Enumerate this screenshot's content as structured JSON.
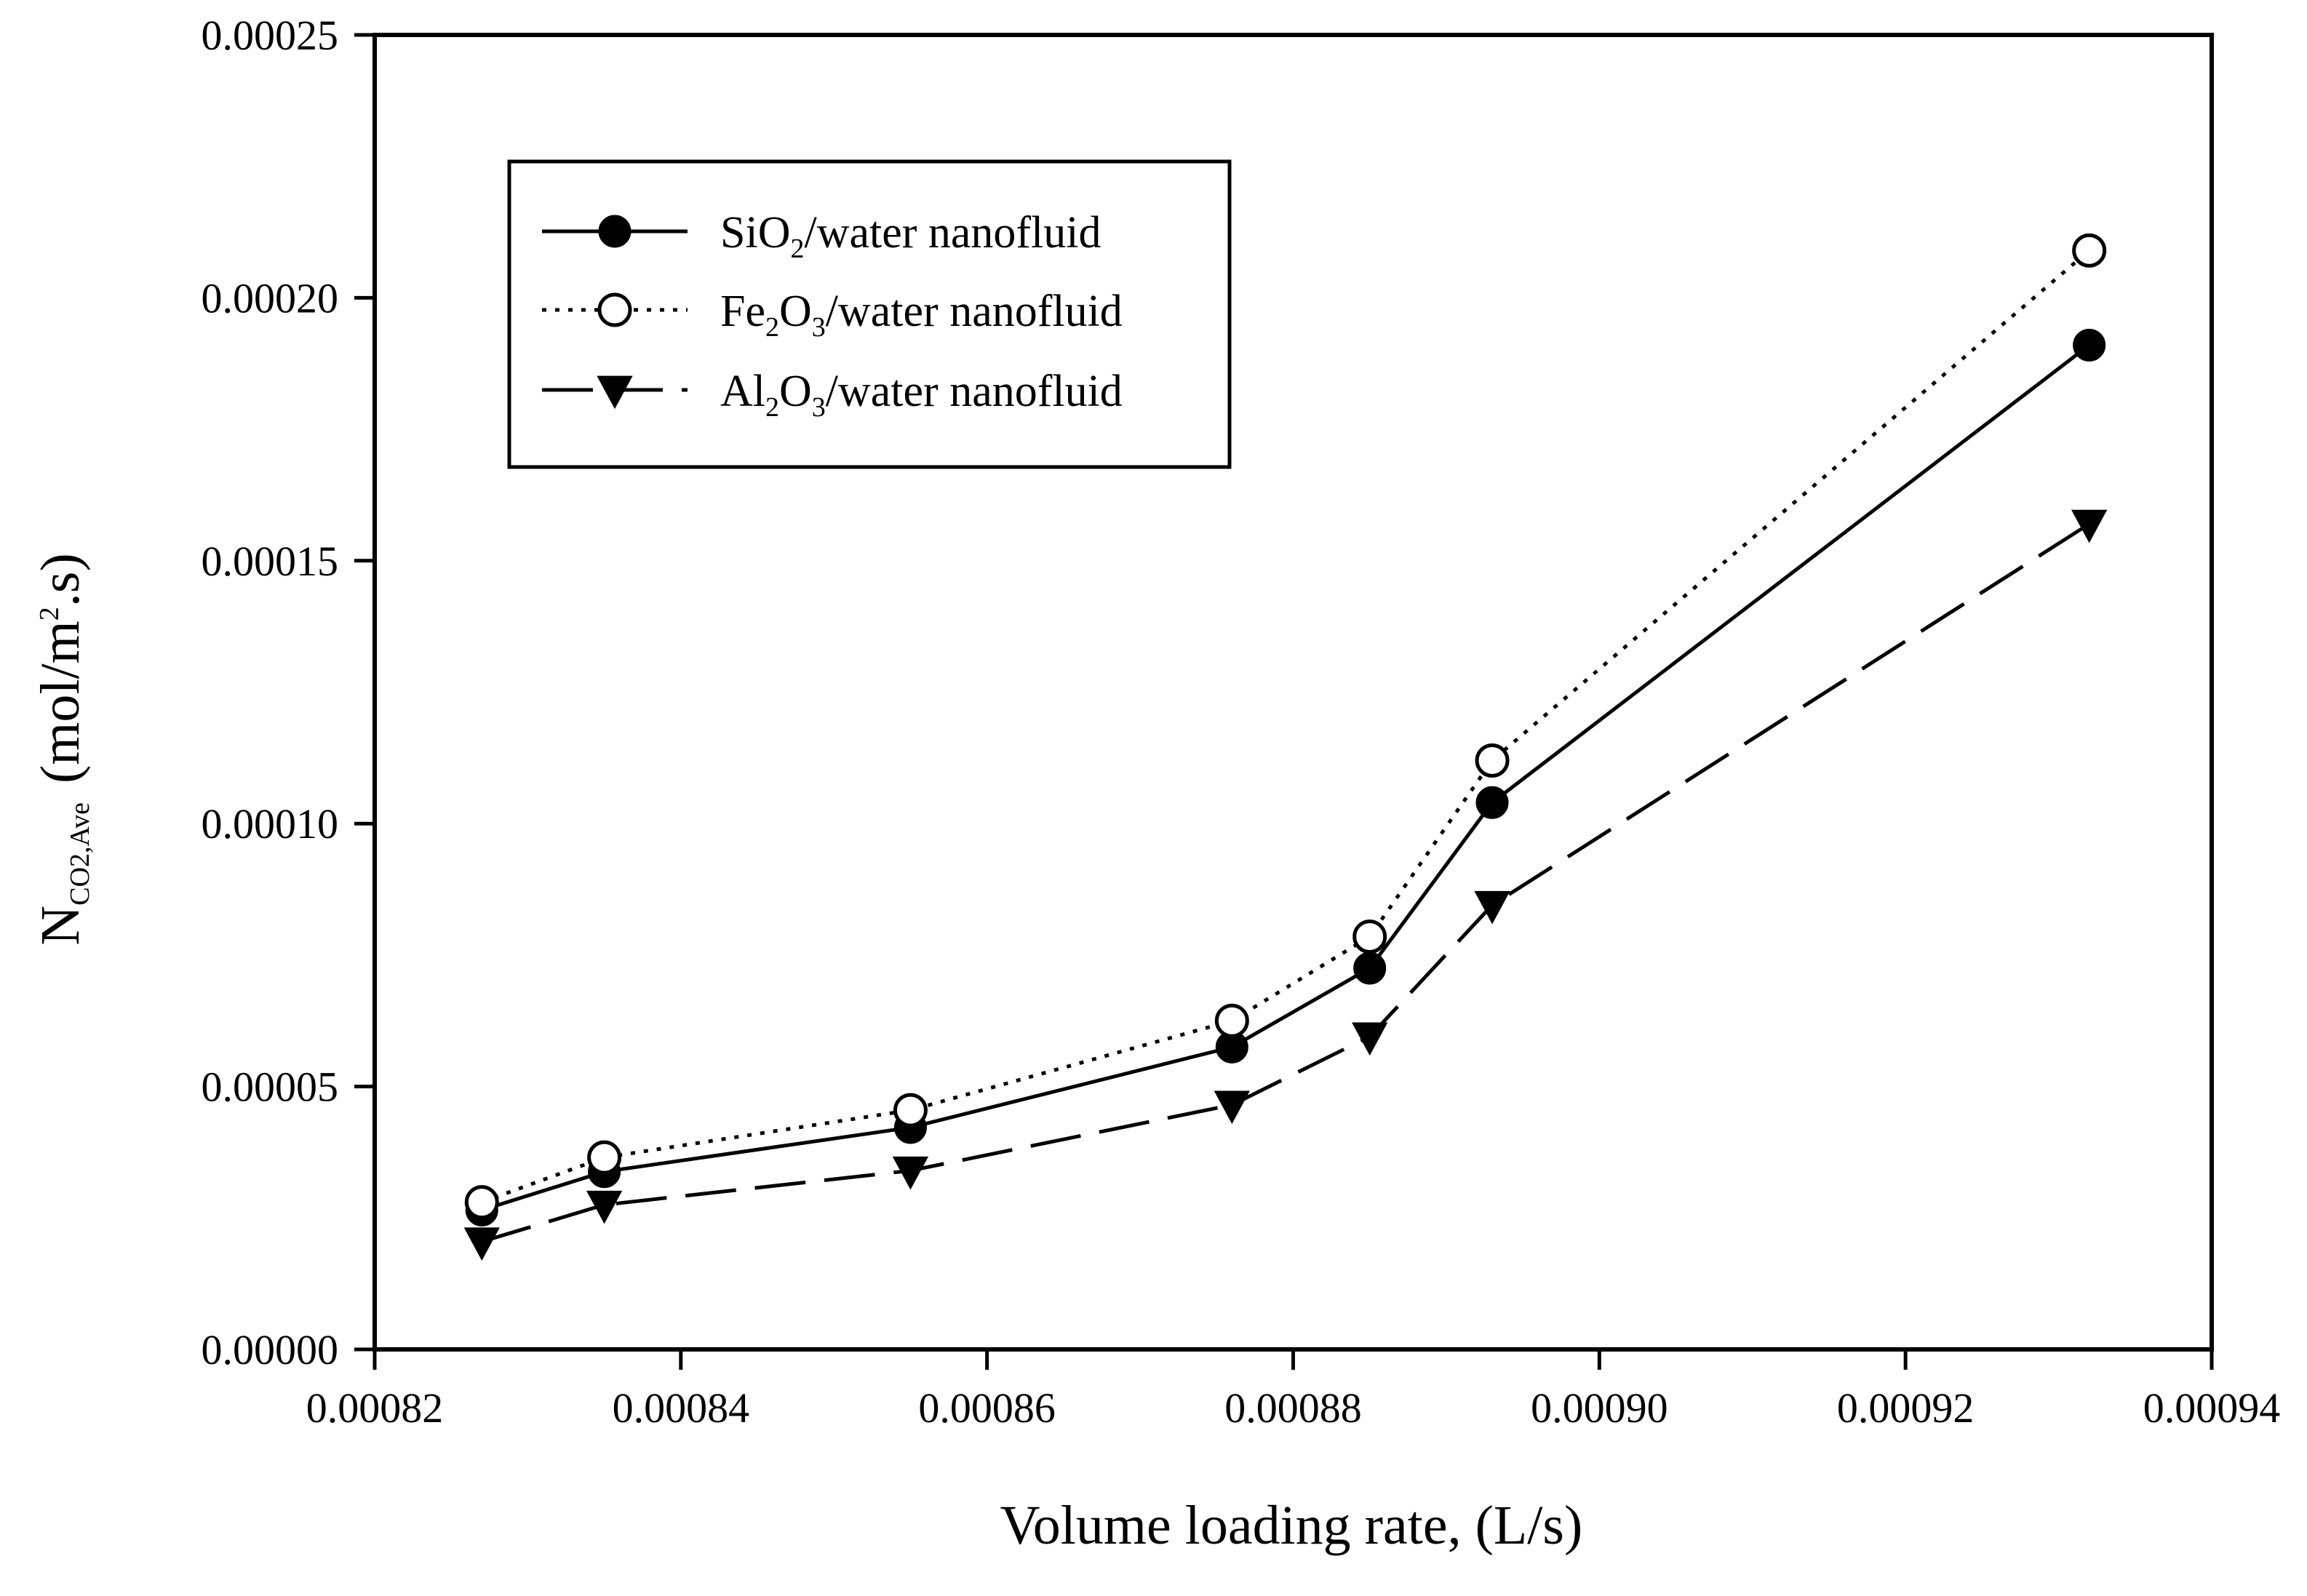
{
  "chart_data": {
    "type": "line",
    "title": "",
    "xlabel": "Volume loading rate, (L/s)",
    "ylabel": {
      "main": "N",
      "sub": "CO2,Ave",
      "unit": "(mol/m",
      "unit_sup": "2",
      "unit_end": ".s)"
    },
    "xlim": [
      0.00082,
      0.00094
    ],
    "ylim": [
      0.0,
      0.00025
    ],
    "x_ticks": [
      "0.00082",
      "0.00084",
      "0.00086",
      "0.00088",
      "0.00090",
      "0.00092",
      "0.00094"
    ],
    "y_ticks": [
      "0.00000",
      "0.00005",
      "0.00010",
      "0.00015",
      "0.00020",
      "0.00025"
    ],
    "grid": false,
    "legend_position": "top-left",
    "x": [
      0.000827,
      0.000835,
      0.000855,
      0.000876,
      0.000885,
      0.000893,
      0.000932
    ],
    "series": [
      {
        "name": "SiO2/water nanofluid",
        "legend": {
          "pre": "SiO",
          "sub": "2",
          "post": "/water nanofluid"
        },
        "marker": "filled-circle",
        "line": "solid",
        "values": [
          2.65e-05,
          3.38e-05,
          4.22e-05,
          5.75e-05,
          7.25e-05,
          0.000104,
          0.000191
        ]
      },
      {
        "name": "Fe2O3/water nanofluid",
        "legend": {
          "pre": "Fe",
          "sub": "2",
          "mid": "O",
          "sub2": "3",
          "post": "/water nanofluid"
        },
        "marker": "open-circle",
        "line": "dotted",
        "values": [
          2.8e-05,
          3.65e-05,
          4.55e-05,
          6.25e-05,
          7.85e-05,
          0.000112,
          0.000209
        ]
      },
      {
        "name": "Al2O3/water nanofluid",
        "legend": {
          "pre": "Al",
          "sub": "2",
          "mid": "O",
          "sub2": "3",
          "post": "/water nanofluid"
        },
        "marker": "filled-triangle-down",
        "line": "dashed",
        "values": [
          2.05e-05,
          2.75e-05,
          3.4e-05,
          4.65e-05,
          5.95e-05,
          8.45e-05,
          0.000157
        ]
      }
    ]
  }
}
